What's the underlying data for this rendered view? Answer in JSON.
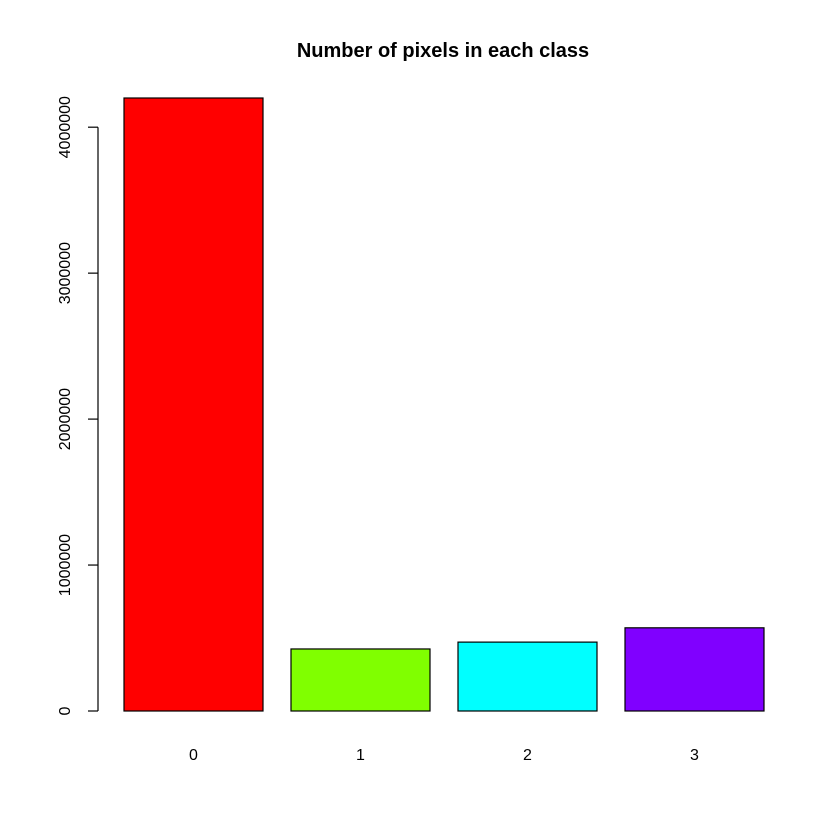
{
  "chart_data": {
    "type": "bar",
    "title": "Number of pixels in each class",
    "xlabel": "",
    "ylabel": "",
    "categories": [
      "0",
      "1",
      "2",
      "3"
    ],
    "values": [
      4200000,
      425000,
      472000,
      570000
    ],
    "colors": [
      "#ff0000",
      "#80ff00",
      "#00ffff",
      "#8000ff"
    ],
    "ylim": [
      0,
      4200000
    ],
    "y_ticks": [
      0,
      1000000,
      2000000,
      3000000,
      4000000
    ],
    "y_tick_labels": [
      "0",
      "1000000",
      "2000000",
      "3000000",
      "4000000"
    ],
    "grid": false,
    "legend": "none"
  }
}
